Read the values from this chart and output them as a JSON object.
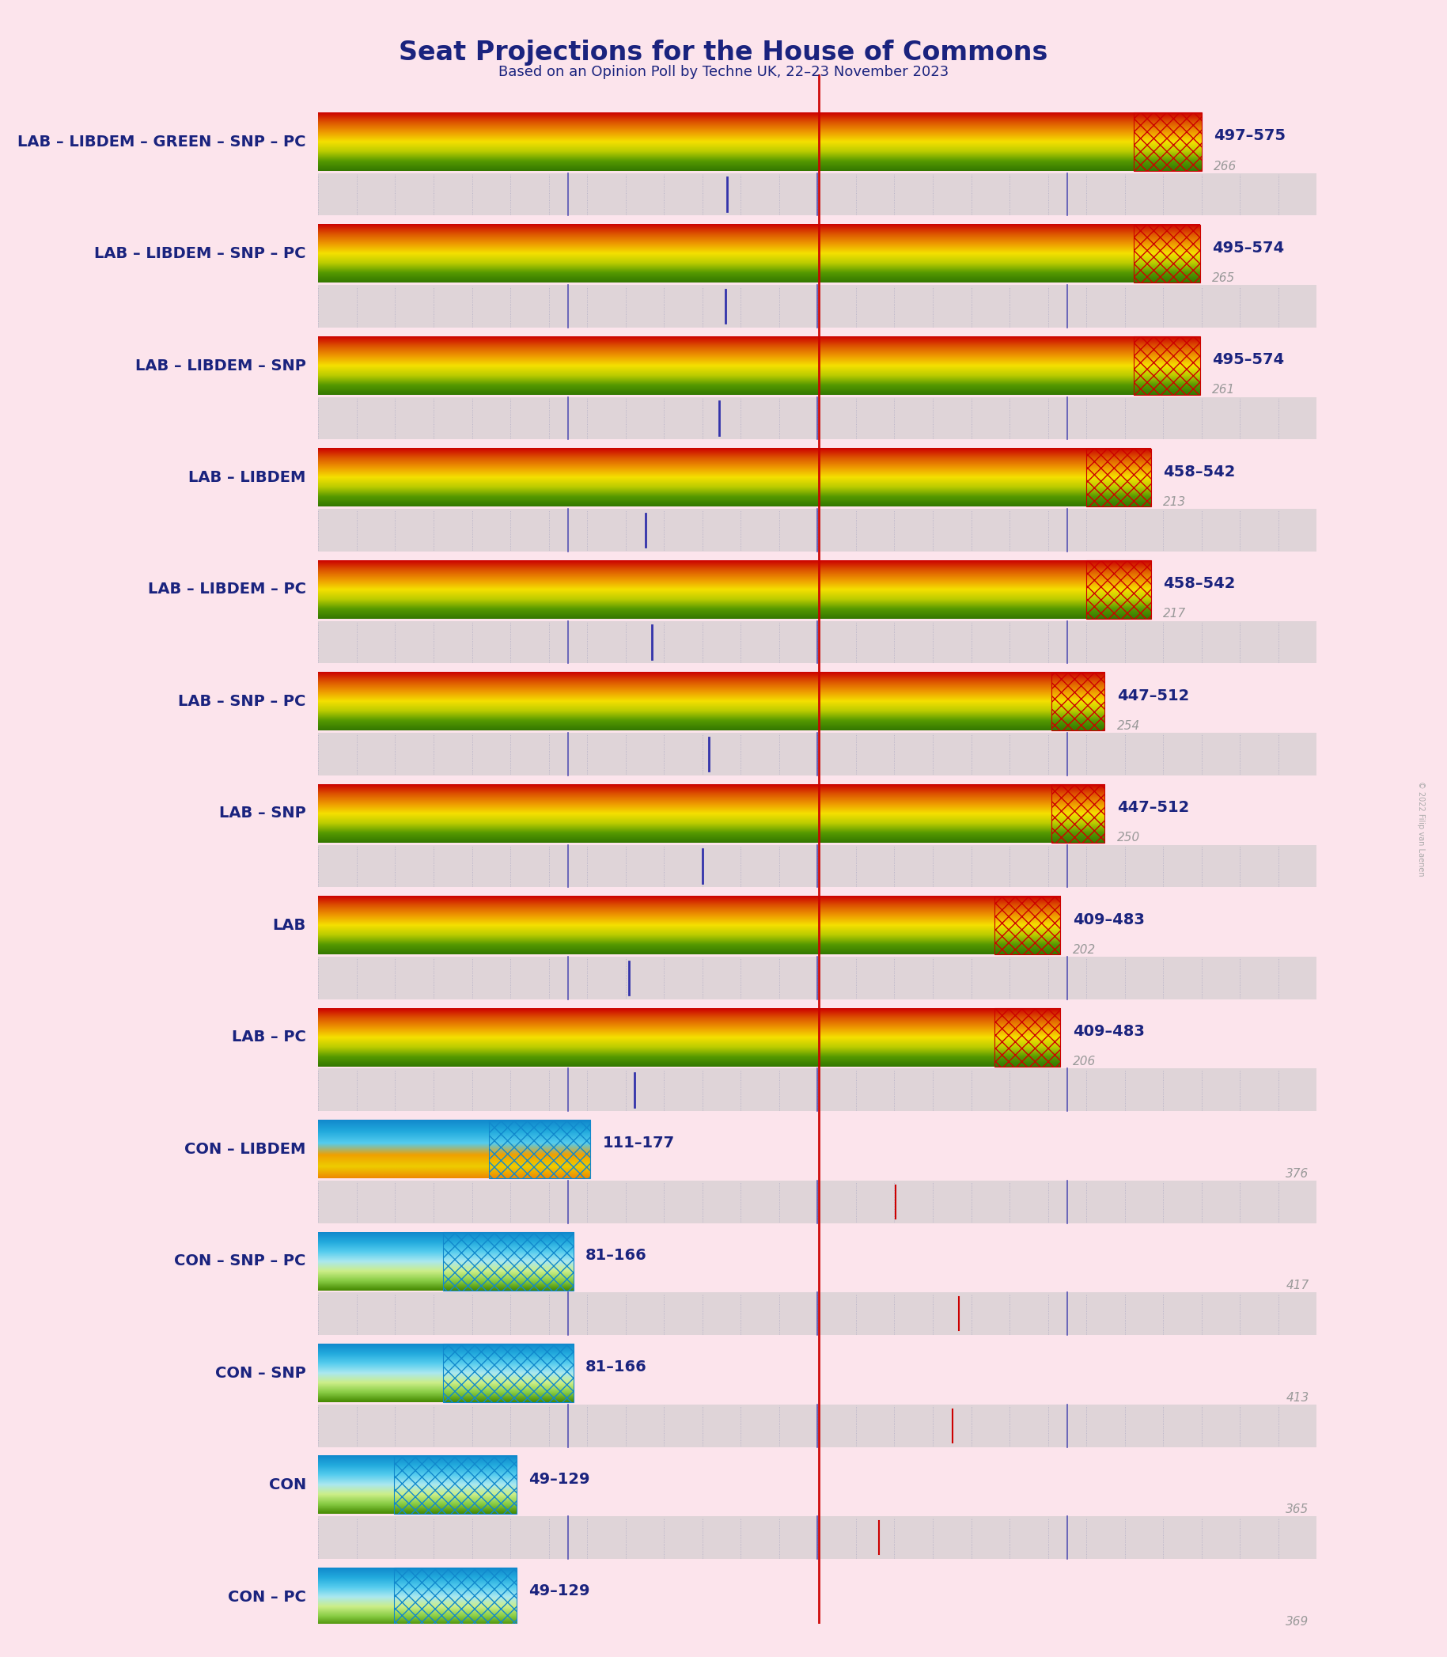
{
  "title": "Seat Projections for the House of Commons",
  "subtitle": "Based on an Opinion Poll by Techne UK, 22–23 November 2023",
  "background_color": "#fce4ec",
  "title_color": "#1a237e",
  "subtitle_color": "#1a237e",
  "majority_line": 326,
  "total_seats": 650,
  "coalitions": [
    {
      "label": "LAB – LIBDEM – GREEN – SNP – PC",
      "min": 497,
      "max": 575,
      "median": 531,
      "last": 266,
      "side": "left"
    },
    {
      "label": "LAB – LIBDEM – SNP – PC",
      "min": 495,
      "max": 574,
      "median": 531,
      "last": 265,
      "side": "left"
    },
    {
      "label": "LAB – LIBDEM – SNP",
      "min": 495,
      "max": 574,
      "median": 531,
      "last": 261,
      "side": "left"
    },
    {
      "label": "LAB – LIBDEM",
      "min": 458,
      "max": 542,
      "median": 500,
      "last": 213,
      "side": "left"
    },
    {
      "label": "LAB – LIBDEM – PC",
      "min": 458,
      "max": 542,
      "median": 500,
      "last": 217,
      "side": "left"
    },
    {
      "label": "LAB – SNP – PC",
      "min": 447,
      "max": 512,
      "median": 477,
      "last": 254,
      "side": "left"
    },
    {
      "label": "LAB – SNP",
      "min": 447,
      "max": 512,
      "median": 477,
      "last": 250,
      "side": "left"
    },
    {
      "label": "LAB",
      "min": 409,
      "max": 483,
      "median": 440,
      "last": 202,
      "side": "left"
    },
    {
      "label": "LAB – PC",
      "min": 409,
      "max": 483,
      "median": 440,
      "last": 206,
      "side": "left"
    },
    {
      "label": "CON – LIBDEM",
      "min": 111,
      "max": 177,
      "median": 144,
      "last": 376,
      "side": "right"
    },
    {
      "label": "CON – SNP – PC",
      "min": 81,
      "max": 166,
      "median": 124,
      "last": 417,
      "side": "right"
    },
    {
      "label": "CON – SNP",
      "min": 81,
      "max": 166,
      "median": 124,
      "last": 413,
      "side": "right"
    },
    {
      "label": "CON",
      "min": 49,
      "max": 129,
      "median": 89,
      "last": 365,
      "side": "right"
    },
    {
      "label": "CON – PC",
      "min": 49,
      "max": 129,
      "median": 89,
      "last": 369,
      "side": "right"
    }
  ],
  "lab_colors_vertical": [
    "#cc0000",
    "#dd5500",
    "#ee9900",
    "#f5e000",
    "#bbcc00",
    "#559900",
    "#337700"
  ],
  "con_colors_vertical": [
    "#1188cc",
    "#22aadd",
    "#55ccee",
    "#aae8f0",
    "#ccee88",
    "#88cc44",
    "#448800"
  ],
  "con_libdem_colors_vertical": [
    "#1188cc",
    "#22aadd",
    "#55ccee",
    "#f0a000",
    "#eecc00",
    "#ee8800"
  ],
  "gray_bg": "#c8c8c8",
  "gray_dot_color": "#9999bb",
  "label_color": "#1a237e",
  "range_color": "#1a237e",
  "last_color": "#999999",
  "majority_color": "#cc0000",
  "legend_text_color": "#1a237e",
  "legend_last_color": "#888888"
}
